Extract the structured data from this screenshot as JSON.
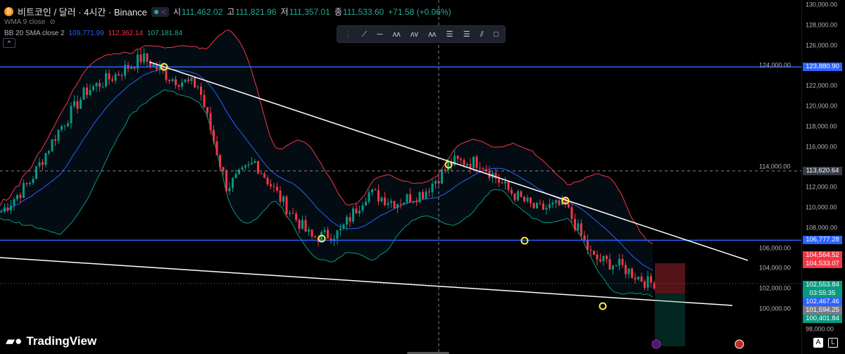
{
  "header": {
    "coin_icon": "bitcoin-icon",
    "symbol": "비트코인 / 달러 · 4시간 · Binance",
    "open_label": "시",
    "open": "111,462.02",
    "high_label": "고",
    "high": "111,821.96",
    "low_label": "저",
    "low": "111,357.01",
    "close_label": "종",
    "close": "111,533.60",
    "change": "+71.58 (+0.06%)"
  },
  "indicators": {
    "wma": "WMA 9 close",
    "bb_label": "BB 20 SMA close 2",
    "bb_basis": "109,771.99",
    "bb_upper": "112,362.14",
    "bb_lower": "107,181.84"
  },
  "toolbar": {
    "tools": [
      "drag-handle",
      "trend-line",
      "horizontal-ray",
      "pattern",
      "abcd-pattern",
      "abc-pattern",
      "parallel-channel",
      "regression",
      "fib-channel",
      "rectangle"
    ]
  },
  "axis": {
    "ticks": [
      "130,000.00",
      "128,000.00",
      "126,000.00",
      "124,000.00",
      "122,000.00",
      "120,000.00",
      "118,000.00",
      "116,000.00",
      "114,000.00",
      "112,000.00",
      "110,000.00",
      "108,000.00",
      "106,000.00",
      "104,000.00",
      "102,000.00",
      "100,000.00",
      "98,000.00"
    ],
    "labels": [
      {
        "text": "123,880.90",
        "price": 123880.9,
        "color": "#2962ff"
      },
      {
        "text": "113,620.64",
        "price": 113620.64,
        "color": "#363a45"
      },
      {
        "text": "106,777.28",
        "price": 106777.28,
        "color": "#2962ff"
      },
      {
        "text": "104,564.52",
        "price": 104564.52,
        "color": "#f23645"
      },
      {
        "text": "104,533.07",
        "price": 104533.07,
        "color": "#f23645"
      },
      {
        "text": "102,553.84",
        "price": 102553.84,
        "color": "#089981"
      },
      {
        "text": "03:55:35",
        "price": 102400,
        "color": "#089981"
      },
      {
        "text": "102,467.46",
        "price": 101500,
        "color": "#2962ff"
      },
      {
        "text": "101,594.25",
        "price": 100600,
        "color": "#787b86"
      },
      {
        "text": "100,401.84",
        "price": 99700,
        "color": "#089981"
      }
    ],
    "auto": "A",
    "log": "L"
  },
  "chart_data": {
    "type": "candlestick",
    "ylim": [
      98000,
      130000
    ],
    "close_path": [
      109600,
      112500,
      117500,
      121500,
      123000,
      124800,
      122800,
      122000,
      112000,
      114500,
      110500,
      107000,
      107500,
      111500,
      110500,
      111500,
      114500,
      114500,
      111700,
      109800,
      110300,
      105000,
      104200,
      102500,
      103500
    ],
    "horizontal_lines": [
      123880.9,
      106777.28
    ],
    "crosshair_price": 113620.64,
    "colors": {
      "up": "#089981",
      "down": "#f23645",
      "bb_upper": "#f23645",
      "bb_basis": "#2962ff",
      "bb_lower": "#089981",
      "trendline": "#ffffff",
      "marker": "#ffeb3b"
    }
  },
  "brand": "TradingView"
}
